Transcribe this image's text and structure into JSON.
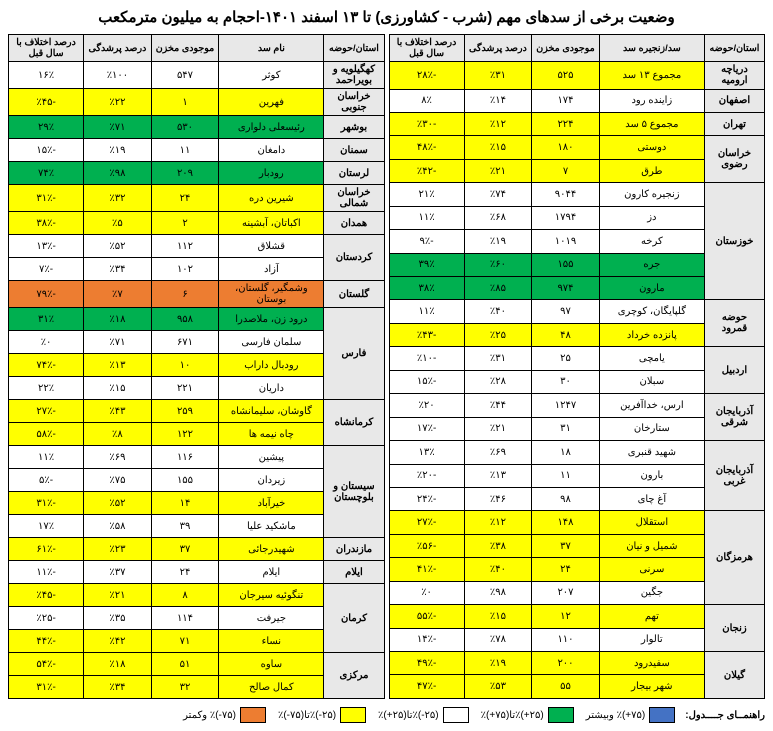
{
  "title": "وضعیت برخی از سدهای مهم (شرب - کشاورزی) تا ۱۳ اسفند ۱۴۰۱-احجام به میلیون مترمکعب",
  "headers": {
    "province": "استان/حوضه",
    "dam": "سد/زنجیره سد",
    "volume": "موجودی مخزن",
    "fill": "درصد پرشدگی",
    "diff": "درصد اختلاف با سال قبل",
    "dam2": "نام سد"
  },
  "colors": {
    "green": "#00b050",
    "yellow": "#ffff00",
    "orange": "#ed7d31",
    "white": "#ffffff",
    "grey": "#e8e8e8",
    "blue": "#4472c4"
  },
  "legend": {
    "label": "راهنمــای جــــدول:",
    "items": [
      {
        "color": "#4472c4",
        "text": "(۷۵+)٪ وبیشتر"
      },
      {
        "color": "#00b050",
        "text": "(۲۵+)٪تا(۷۵+)٪"
      },
      {
        "color": "#ffffff",
        "text": "(۲۵-)٪تا(۲۵+)٪"
      },
      {
        "color": "#ffff00",
        "text": "(۲۵-)٪تا(۷۵-)٪"
      },
      {
        "color": "#ed7d31",
        "text": "(۷۵-)٪ وکمتر"
      }
    ]
  },
  "right": [
    {
      "prov": "دریاچه ارومیه",
      "provSpan": 1,
      "dam": "مجموع ۱۳ سد",
      "vol": "۵۲۵",
      "fill": "٪۳۱",
      "diff": "-۲۸٪",
      "c": "#ffff00"
    },
    {
      "prov": "اصفهان",
      "provSpan": 1,
      "dam": "زاینده رود",
      "vol": "۱۷۴",
      "fill": "٪۱۴",
      "diff": "۸٪",
      "c": "#ffffff"
    },
    {
      "prov": "تهران",
      "provSpan": 1,
      "dam": "مجموع ۵ سد",
      "vol": "۲۲۴",
      "fill": "٪۱۲",
      "diff": "-٪۳۰",
      "c": "#ffff00"
    },
    {
      "prov": "خراسان رضوی",
      "provSpan": 2,
      "dam": "دوستی",
      "vol": "۱۸۰",
      "fill": "٪۱۵",
      "diff": "-۴۸٪",
      "c": "#ffff00"
    },
    {
      "dam": "طرق",
      "vol": "۷",
      "fill": "٪۲۱",
      "diff": "-٪۴۲",
      "c": "#ffff00"
    },
    {
      "prov": "خوزستان",
      "provSpan": 5,
      "dam": "زنجیره کارون",
      "vol": "۹۰۴۴",
      "fill": "٪۷۴",
      "diff": "۲۱٪",
      "c": "#ffffff"
    },
    {
      "dam": "دز",
      "vol": "۱۷۹۴",
      "fill": "٪۶۸",
      "diff": "۱۱٪",
      "c": "#ffffff"
    },
    {
      "dam": "کرخه",
      "vol": "۱۰۱۹",
      "fill": "٪۱۹",
      "diff": "-۹٪",
      "c": "#ffffff"
    },
    {
      "dam": "جره",
      "vol": "۱۵۵",
      "fill": "٪۶۰",
      "diff": "۳۹٪",
      "c": "#00b050"
    },
    {
      "dam": "مارون",
      "vol": "۹۷۴",
      "fill": "٪۸۵",
      "diff": "۳۸٪",
      "c": "#00b050"
    },
    {
      "prov": "حوضه قمرود",
      "provSpan": 2,
      "dam": "گلپایگان، کوچری",
      "vol": "۹۷",
      "fill": "٪۴۰",
      "diff": "۱۱٪",
      "c": "#ffffff"
    },
    {
      "dam": "پانزده خرداد",
      "vol": "۴۸",
      "fill": "٪۲۵",
      "diff": "-٪۴۳",
      "c": "#ffff00"
    },
    {
      "prov": "اردبیل",
      "provSpan": 2,
      "dam": "یامچی",
      "vol": "۲۵",
      "fill": "٪۳۱",
      "diff": "-٪۱۰",
      "c": "#ffffff"
    },
    {
      "dam": "سبلان",
      "vol": "۳۰",
      "fill": "٪۲۸",
      "diff": "-۱۵٪",
      "c": "#ffffff"
    },
    {
      "prov": "آذربایجان شرقی",
      "provSpan": 2,
      "dam": "ارس، خداآفرین",
      "vol": "۱۲۴۷",
      "fill": "٪۴۴",
      "diff": "٪۲۰",
      "c": "#ffffff"
    },
    {
      "dam": "ستارخان",
      "vol": "۳۱",
      "fill": "٪۲۱",
      "diff": "-۱۷٪",
      "c": "#ffffff"
    },
    {
      "prov": "آذربایجان غربی",
      "provSpan": 3,
      "dam": "شهید قنبری",
      "vol": "۱۸",
      "fill": "٪۶۹",
      "diff": "۱۳٪",
      "c": "#ffffff"
    },
    {
      "dam": "بارون",
      "vol": "۱۱",
      "fill": "٪۱۳",
      "diff": "-٪۲۰",
      "c": "#ffffff"
    },
    {
      "dam": "آغ چای",
      "vol": "۹۸",
      "fill": "٪۴۶",
      "diff": "-۲۴٪",
      "c": "#ffffff"
    },
    {
      "prov": "هرمزگان",
      "provSpan": 4,
      "dam": "استقلال",
      "vol": "۱۴۸",
      "fill": "٪۱۲",
      "diff": "-۲۷٪",
      "c": "#ffff00"
    },
    {
      "dam": "شمیل و نیان",
      "vol": "۳۷",
      "fill": "٪۳۸",
      "diff": "-٪۵۶",
      "c": "#ffff00"
    },
    {
      "dam": "سرنی",
      "vol": "۲۴",
      "fill": "٪۴۰",
      "diff": "-۴۱٪",
      "c": "#ffff00"
    },
    {
      "dam": "جگین",
      "vol": "۲۰۷",
      "fill": "٪۹۸",
      "diff": "٪۰",
      "c": "#ffffff"
    },
    {
      "prov": "زنجان",
      "provSpan": 2,
      "dam": "تهم",
      "vol": "۱۲",
      "fill": "٪۱۵",
      "diff": "-۵۵٪",
      "c": "#ffff00"
    },
    {
      "dam": "تالوار",
      "vol": "۱۱۰",
      "fill": "٪۷۸",
      "diff": "-۱۴٪",
      "c": "#ffffff"
    },
    {
      "prov": "گیلان",
      "provSpan": 2,
      "dam": "سفیدرود",
      "vol": "۲۰۰",
      "fill": "٪۱۹",
      "diff": "-۴۹٪",
      "c": "#ffff00"
    },
    {
      "dam": "شهر بیجار",
      "vol": "۵۵",
      "fill": "٪۵۳",
      "diff": "-۴۷٪",
      "c": "#ffff00"
    }
  ],
  "left": [
    {
      "prov": "کهگیلویه و بویراحمد",
      "provSpan": 1,
      "dam": "کوثر",
      "vol": "۵۴۷",
      "fill": "٪۱۰۰",
      "diff": "۱۶٪",
      "c": "#ffffff"
    },
    {
      "prov": "خراسان جنوبی",
      "provSpan": 1,
      "dam": "فهرین",
      "vol": "۱",
      "fill": "٪۲۲",
      "diff": "-٪۴۵",
      "c": "#ffff00"
    },
    {
      "prov": "بوشهر",
      "provSpan": 1,
      "dam": "رئیسعلی دلواری",
      "vol": "۵۳۰",
      "fill": "٪۷۱",
      "diff": "۲۹٪",
      "c": "#00b050"
    },
    {
      "prov": "سمنان",
      "provSpan": 1,
      "dam": "دامغان",
      "vol": "۱۱",
      "fill": "٪۱۹",
      "diff": "-۱۵٪",
      "c": "#ffffff"
    },
    {
      "prov": "لرستان",
      "provSpan": 1,
      "dam": "رودبار",
      "vol": "۲۰۹",
      "fill": "٪۹۸",
      "diff": "۷۴٪",
      "c": "#00b050"
    },
    {
      "prov": "خراسان شمالی",
      "provSpan": 1,
      "dam": "شیرین دره",
      "vol": "۲۴",
      "fill": "٪۳۲",
      "diff": "-۳۱٪",
      "c": "#ffff00"
    },
    {
      "prov": "همدان",
      "provSpan": 1,
      "dam": "اکباتان، آبشینه",
      "vol": "۲",
      "fill": "٪۵",
      "diff": "-۳۸٪",
      "c": "#ffff00"
    },
    {
      "prov": "کردستان",
      "provSpan": 2,
      "dam": "قشلاق",
      "vol": "۱۱۲",
      "fill": "٪۵۲",
      "diff": "-۱۳٪",
      "c": "#ffffff"
    },
    {
      "dam": "آزاد",
      "vol": "۱۰۲",
      "fill": "٪۳۴",
      "diff": "-۷٪",
      "c": "#ffffff"
    },
    {
      "prov": "گلستان",
      "provSpan": 1,
      "dam": "وشمگیر، گلستان، بوستان",
      "vol": "۶",
      "fill": "٪۷",
      "diff": "-۷۹٪",
      "c": "#ed7d31"
    },
    {
      "prov": "فارس",
      "provSpan": 4,
      "dam": "درود زن، ملاصدرا",
      "vol": "۹۵۸",
      "fill": "٪۱۸",
      "diff": "۳۱٪",
      "c": "#00b050"
    },
    {
      "dam": "سلمان فارسی",
      "vol": "۶۷۱",
      "fill": "٪۷۱",
      "diff": "٪۰",
      "c": "#ffffff"
    },
    {
      "dam": "رودبال داراب",
      "vol": "۱۰",
      "fill": "٪۱۳",
      "diff": "-۷۴٪",
      "c": "#ffff00"
    },
    {
      "dam": "داریان",
      "vol": "۲۲۱",
      "fill": "٪۱۵",
      "diff": "۲۲٪",
      "c": "#ffffff"
    },
    {
      "prov": "کرمانشاه",
      "provSpan": 2,
      "dam": "گاوشان، سلیمانشاه",
      "vol": "۲۵۹",
      "fill": "٪۴۳",
      "diff": "-۲۷٪",
      "c": "#ffff00"
    },
    {
      "dam": "چاه نیمه ها",
      "vol": "۱۲۲",
      "fill": "٪۸",
      "diff": "-۵۸٪",
      "c": "#ffff00"
    },
    {
      "prov": "سیستان و بلوچستان",
      "provSpan": 4,
      "dam": "پیشین",
      "vol": "۱۱۶",
      "fill": "٪۶۹",
      "diff": "۱۱٪",
      "c": "#ffffff"
    },
    {
      "dam": "زیردان",
      "vol": "۱۵۵",
      "fill": "٪۷۵",
      "diff": "-۵٪",
      "c": "#ffffff"
    },
    {
      "dam": "خیرآباد",
      "vol": "۱۴",
      "fill": "٪۵۲",
      "diff": "-۳۱٪",
      "c": "#ffff00"
    },
    {
      "dam": "ماشکید علیا",
      "vol": "۳۹",
      "fill": "٪۵۸",
      "diff": "۱۷٪",
      "c": "#ffffff"
    },
    {
      "prov": "مازندران",
      "provSpan": 1,
      "dam": "شهیدرجائی",
      "vol": "۳۷",
      "fill": "٪۲۳",
      "diff": "-۶۱٪",
      "c": "#ffff00"
    },
    {
      "prov": "ایلام",
      "provSpan": 1,
      "dam": "ایلام",
      "vol": "۲۴",
      "fill": "٪۳۷",
      "diff": "-۱۱٪",
      "c": "#ffffff"
    },
    {
      "prov": "کرمان",
      "provSpan": 3,
      "dam": "تنگوئیه سیرجان",
      "vol": "۸",
      "fill": "٪۲۱",
      "diff": "-٪۴۵",
      "c": "#ffff00"
    },
    {
      "dam": "جیرفت",
      "vol": "۱۱۴",
      "fill": "٪۳۵",
      "diff": "-٪۲۵",
      "c": "#ffffff"
    },
    {
      "dam": "نساء",
      "vol": "۷۱",
      "fill": "٪۴۲",
      "diff": "-۴۴٪",
      "c": "#ffff00"
    },
    {
      "prov": "مرکزی",
      "provSpan": 2,
      "dam": "ساوه",
      "vol": "۵۱",
      "fill": "٪۱۸",
      "diff": "-۵۴٪",
      "c": "#ffff00"
    },
    {
      "dam": "کمال صالح",
      "vol": "۳۲",
      "fill": "٪۳۴",
      "diff": "-۳۱٪",
      "c": "#ffff00"
    }
  ]
}
